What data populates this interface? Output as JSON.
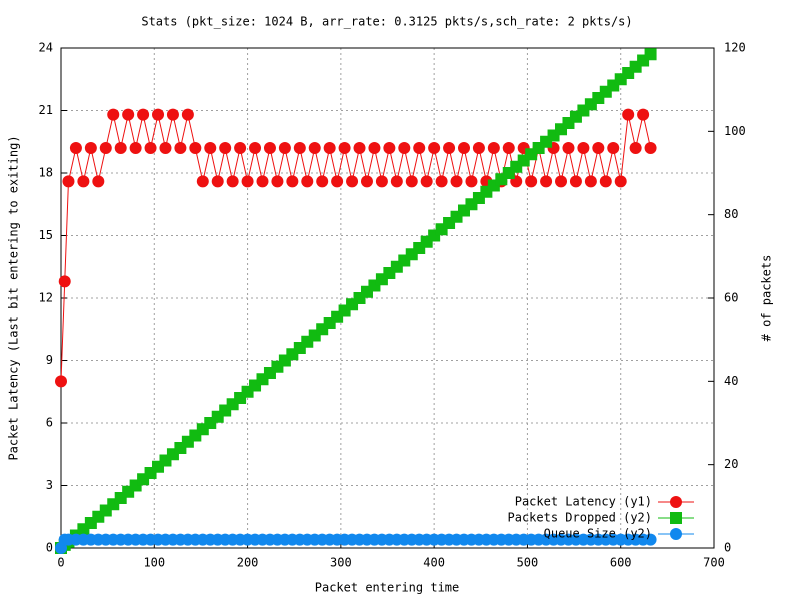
{
  "chart_data": {
    "type": "line",
    "title": "Stats (pkt_size: 1024 B, arr_rate: 0.3125 pkts/s,sch_rate: 2 pkts/s)",
    "x_label": "Packet entering time",
    "y_label": "Packet Latency (Last bit entering to exiting)",
    "y2_label": "# of packets",
    "x": [
      0,
      4,
      8,
      16,
      24,
      32,
      40,
      48,
      56,
      64,
      72,
      80,
      88,
      96,
      104,
      112,
      120,
      128,
      136,
      144,
      152,
      160,
      168,
      176,
      184,
      192,
      200,
      208,
      216,
      224,
      232,
      240,
      248,
      256,
      264,
      272,
      280,
      288,
      296,
      304,
      312,
      320,
      328,
      336,
      344,
      352,
      360,
      368,
      376,
      384,
      392,
      400,
      408,
      416,
      424,
      432,
      440,
      448,
      456,
      464,
      472,
      480,
      488,
      496,
      504,
      512,
      520,
      528,
      536,
      544,
      552,
      560,
      568,
      576,
      584,
      592,
      600,
      608,
      616,
      624,
      632
    ],
    "series": [
      {
        "name": "Packet Latency (y1)",
        "color": "#ee1111",
        "marker": "circle",
        "axis": "y",
        "values": [
          8,
          12.8,
          17.6,
          19.2,
          17.6,
          19.2,
          17.6,
          19.2,
          20.8,
          19.2,
          20.8,
          19.2,
          20.8,
          19.2,
          20.8,
          19.2,
          20.8,
          19.2,
          20.8,
          19.2,
          17.6,
          19.2,
          17.6,
          19.2,
          17.6,
          19.2,
          17.6,
          19.2,
          17.6,
          19.2,
          17.6,
          19.2,
          17.6,
          19.2,
          17.6,
          19.2,
          17.6,
          19.2,
          17.6,
          19.2,
          17.6,
          19.2,
          17.6,
          19.2,
          17.6,
          19.2,
          17.6,
          19.2,
          17.6,
          19.2,
          17.6,
          19.2,
          17.6,
          19.2,
          17.6,
          19.2,
          17.6,
          19.2,
          17.6,
          19.2,
          17.6,
          19.2,
          17.6,
          19.2,
          17.6,
          19.2,
          17.6,
          19.2,
          17.6,
          19.2,
          17.6,
          19.2,
          17.6,
          19.2,
          17.6,
          19.2,
          17.6,
          20.8,
          19.2,
          20.8,
          19.2
        ]
      },
      {
        "name": "Packets Dropped (y2)",
        "color": "#11bb11",
        "marker": "square",
        "axis": "y2",
        "values": [
          0,
          0.75,
          1.5,
          3,
          4.5,
          6,
          7.5,
          9,
          10.5,
          12,
          13.5,
          15,
          16.5,
          18,
          19.5,
          21,
          22.5,
          24,
          25.5,
          27,
          28.5,
          30,
          31.5,
          33,
          34.5,
          36,
          37.5,
          39,
          40.5,
          42,
          43.5,
          45,
          46.5,
          48,
          49.5,
          51,
          52.5,
          54,
          55.5,
          57,
          58.5,
          60,
          61.5,
          63,
          64.5,
          66,
          67.5,
          69,
          70.5,
          72,
          73.5,
          75,
          76.5,
          78,
          79.5,
          81,
          82.5,
          84,
          85.5,
          87,
          88.5,
          90,
          91.5,
          93,
          94.5,
          96,
          97.5,
          99,
          100.5,
          102,
          103.5,
          105,
          106.5,
          108,
          109.5,
          111,
          112.5,
          114,
          115.5,
          117,
          118.5
        ]
      },
      {
        "name": "Queue Size (y2)",
        "color": "#1188ee",
        "marker": "circle",
        "axis": "y2",
        "values": [
          0,
          2,
          2,
          2,
          2,
          2,
          2,
          2,
          2,
          2,
          2,
          2,
          2,
          2,
          2,
          2,
          2,
          2,
          2,
          2,
          2,
          2,
          2,
          2,
          2,
          2,
          2,
          2,
          2,
          2,
          2,
          2,
          2,
          2,
          2,
          2,
          2,
          2,
          2,
          2,
          2,
          2,
          2,
          2,
          2,
          2,
          2,
          2,
          2,
          2,
          2,
          2,
          2,
          2,
          2,
          2,
          2,
          2,
          2,
          2,
          2,
          2,
          2,
          2,
          2,
          2,
          2,
          2,
          2,
          2,
          2,
          2,
          2,
          2,
          2,
          2,
          2,
          2,
          2,
          2,
          2
        ]
      }
    ],
    "xlim": [
      0,
      700
    ],
    "xticks": [
      0,
      100,
      200,
      300,
      400,
      500,
      600,
      700
    ],
    "ylim": [
      0,
      24
    ],
    "yticks": [
      0,
      3,
      6,
      9,
      12,
      15,
      18,
      21,
      24
    ],
    "y2lim": [
      0,
      120
    ],
    "y2ticks": [
      0,
      20,
      40,
      60,
      80,
      100,
      120
    ],
    "grid": true,
    "legend": "bottom-right"
  }
}
